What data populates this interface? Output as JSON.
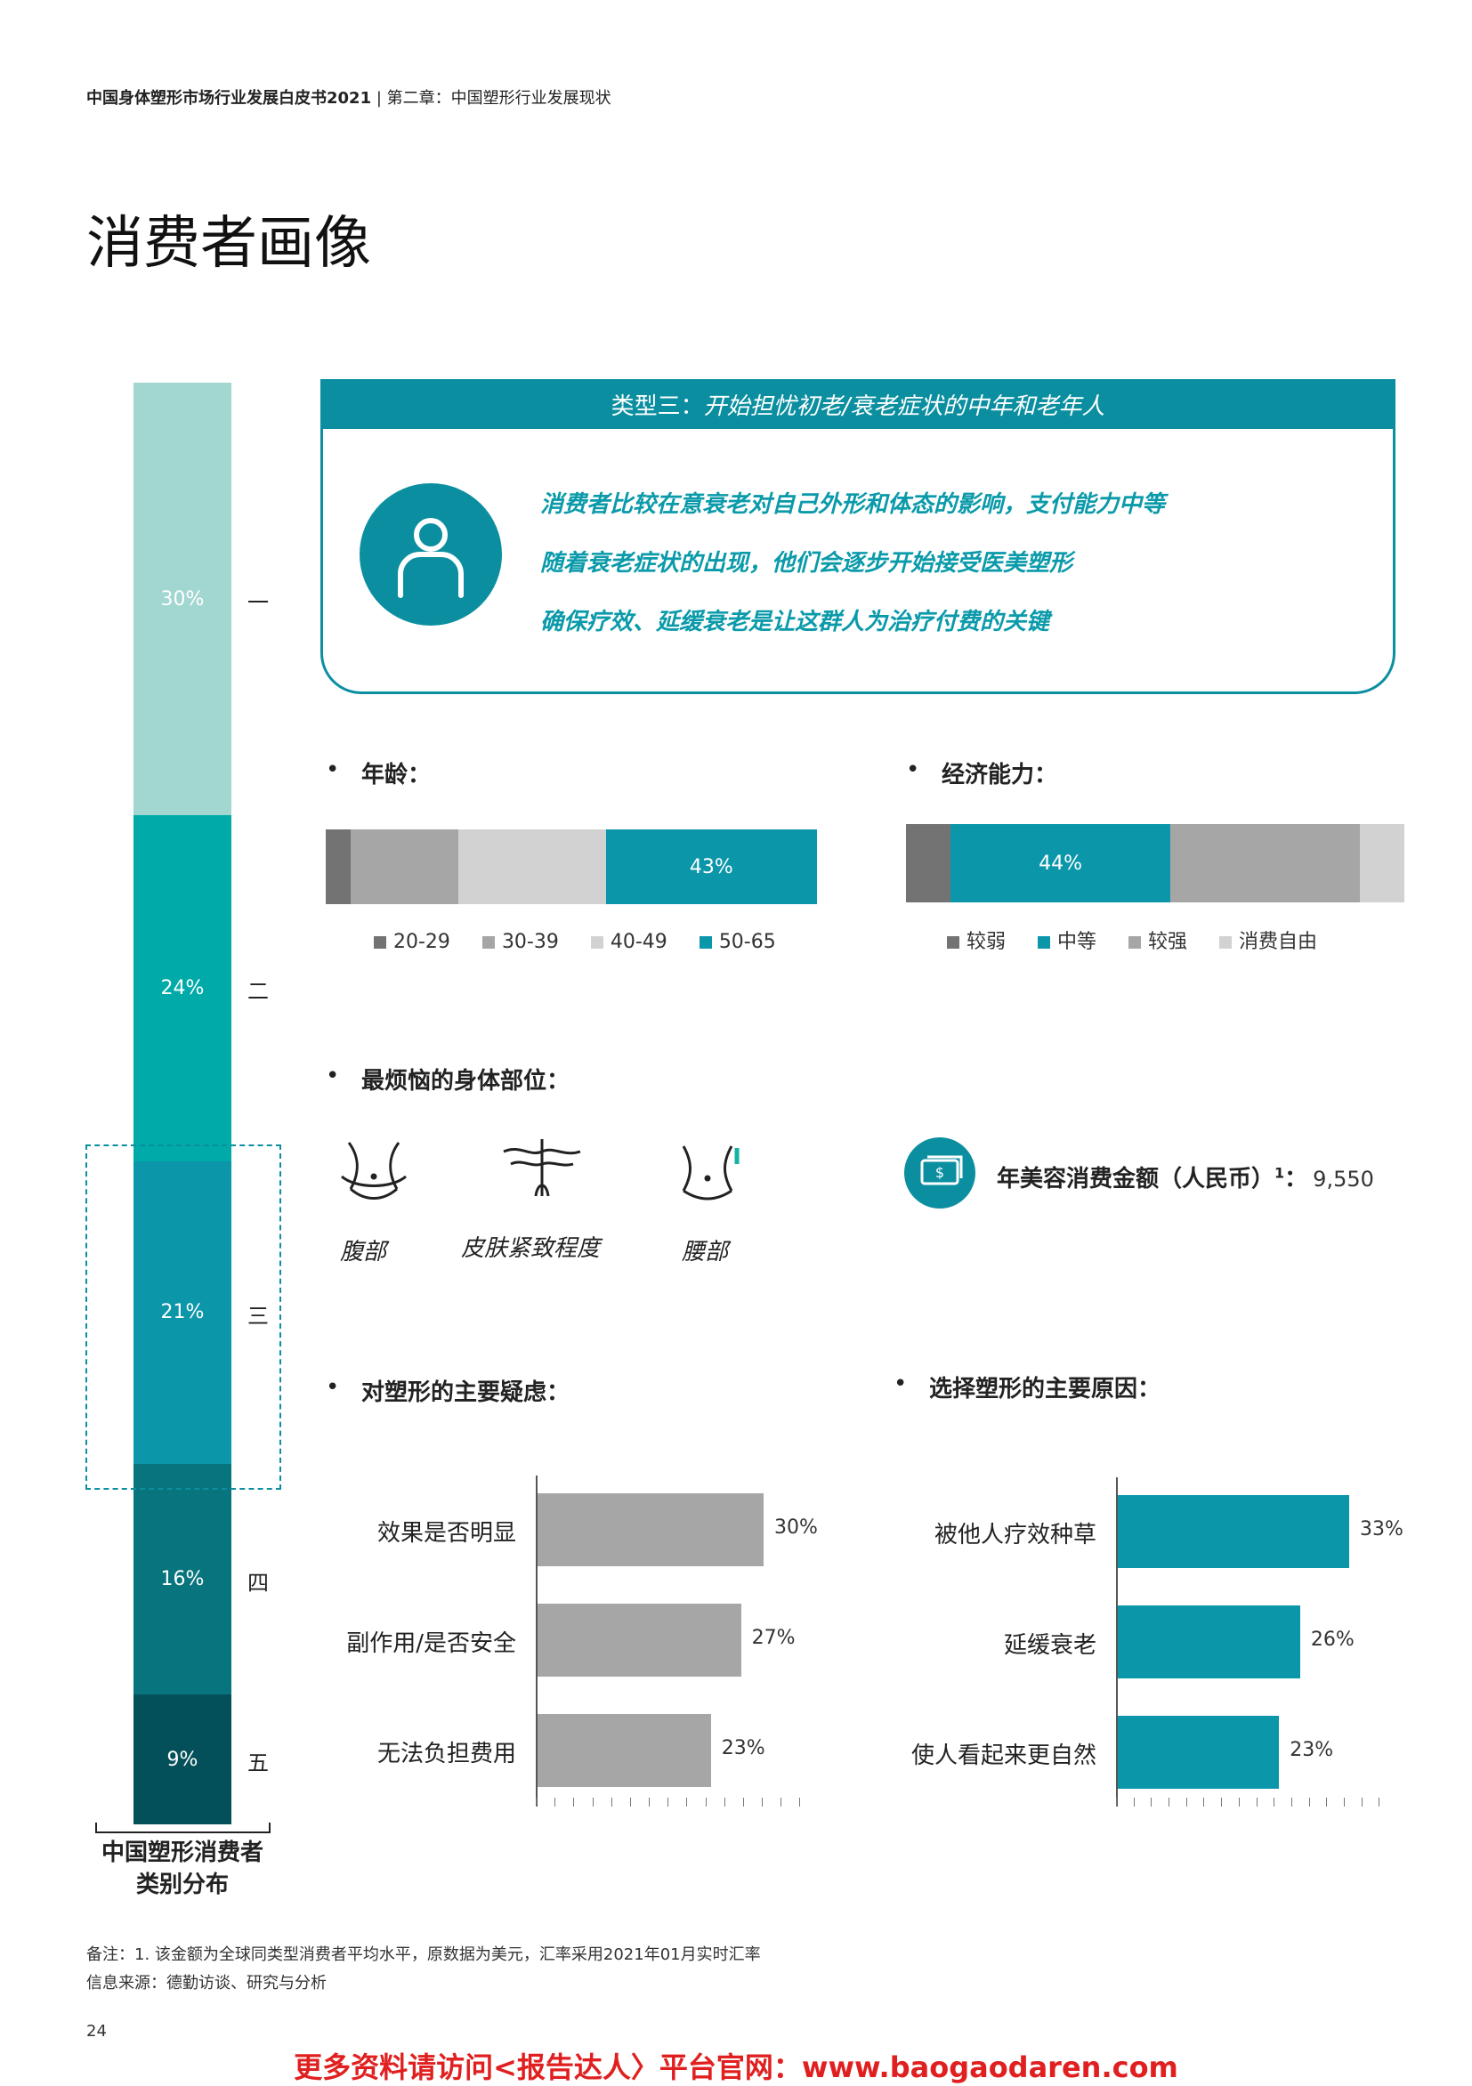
{
  "header": {
    "bold": "中国身体塑形市场行业发展白皮书2021",
    "rest": " | 第二章：中国塑形行业发展现状"
  },
  "title": "消费者画像",
  "distribution": {
    "title_line1": "中国塑形消费者",
    "title_line2": "类别分布",
    "segments": [
      {
        "value": "30%",
        "label": "一",
        "color": "#a2d6d0"
      },
      {
        "value": "24%",
        "label": "二",
        "color": "#00aaa8"
      },
      {
        "value": "21%",
        "label": "三",
        "color": "#0b96aa"
      },
      {
        "value": "16%",
        "label": "四",
        "color": "#08757e"
      },
      {
        "value": "9%",
        "label": "五",
        "color": "#04505a"
      }
    ]
  },
  "card": {
    "prefix": "类型三：",
    "title": "开始担忧初老/衰老症状的中年和老年人",
    "lines": [
      "消费者比较在意衰老对自己外形和体态的影响，支付能力中等",
      "随着衰老症状的出现，他们会逐步开始接受医美塑形",
      "确保疗效、延缓衰老是让这群人为治疗付费的关键"
    ]
  },
  "age": {
    "label": "年龄：",
    "segments": [
      {
        "name": "20-29",
        "share": 5,
        "color": "#737373",
        "text": ""
      },
      {
        "name": "30-39",
        "share": 22,
        "color": "#a6a6a7",
        "text": ""
      },
      {
        "name": "40-49",
        "share": 30,
        "color": "#d2d2d2",
        "text": ""
      },
      {
        "name": "50-65",
        "share": 43,
        "color": "#0b96aa",
        "text": "43%"
      }
    ]
  },
  "economy": {
    "label": "经济能力：",
    "segments": [
      {
        "name": "较弱",
        "share": 9,
        "color": "#737373",
        "text": ""
      },
      {
        "name": "中等",
        "share": 44,
        "color": "#0b96aa",
        "text": "44%"
      },
      {
        "name": "较强",
        "share": 38,
        "color": "#a6a6a7",
        "text": ""
      },
      {
        "name": "消费自由",
        "share": 9,
        "color": "#d2d2d2",
        "text": ""
      }
    ]
  },
  "body_parts": {
    "label": "最烦恼的身体部位：",
    "items": [
      {
        "name": "腹部",
        "icon": "abdomen-icon"
      },
      {
        "name": "皮肤紧致程度",
        "icon": "skin-icon"
      },
      {
        "name": "腰部",
        "icon": "waist-icon"
      }
    ]
  },
  "spend": {
    "label": "年美容消费金额（人民币）",
    "sup": "1",
    "sep": "：",
    "value": "9,550",
    "icon": "money-icon"
  },
  "chart_data": [
    {
      "type": "bar",
      "orientation": "horizontal",
      "title": "对塑形的主要疑虑：",
      "categories": [
        "效果是否明显",
        "副作用/是否安全",
        "无法负担费用"
      ],
      "values": [
        30,
        27,
        23
      ],
      "value_labels": [
        "30%",
        "27%",
        "23%"
      ],
      "color": "#a6a6a7",
      "xlim": [
        0,
        35
      ]
    },
    {
      "type": "bar",
      "orientation": "horizontal",
      "title": "选择塑形的主要原因：",
      "categories": [
        "被他人疗效种草",
        "延缓衰老",
        "使人看起来更自然"
      ],
      "values": [
        33,
        26,
        23
      ],
      "value_labels": [
        "33%",
        "26%",
        "23%"
      ],
      "color": "#0b96aa",
      "xlim": [
        0,
        38
      ]
    }
  ],
  "notes": {
    "line1": "备注：1. 该金额为全球同类型消费者平均水平，原数据为美元，汇率采用2021年01月实时汇率",
    "line2": "信息来源：德勤访谈、研究与分析"
  },
  "page_number": "24",
  "footer": "更多资料请访问<报告达人〉平台官网：www.baogaodaren.com"
}
